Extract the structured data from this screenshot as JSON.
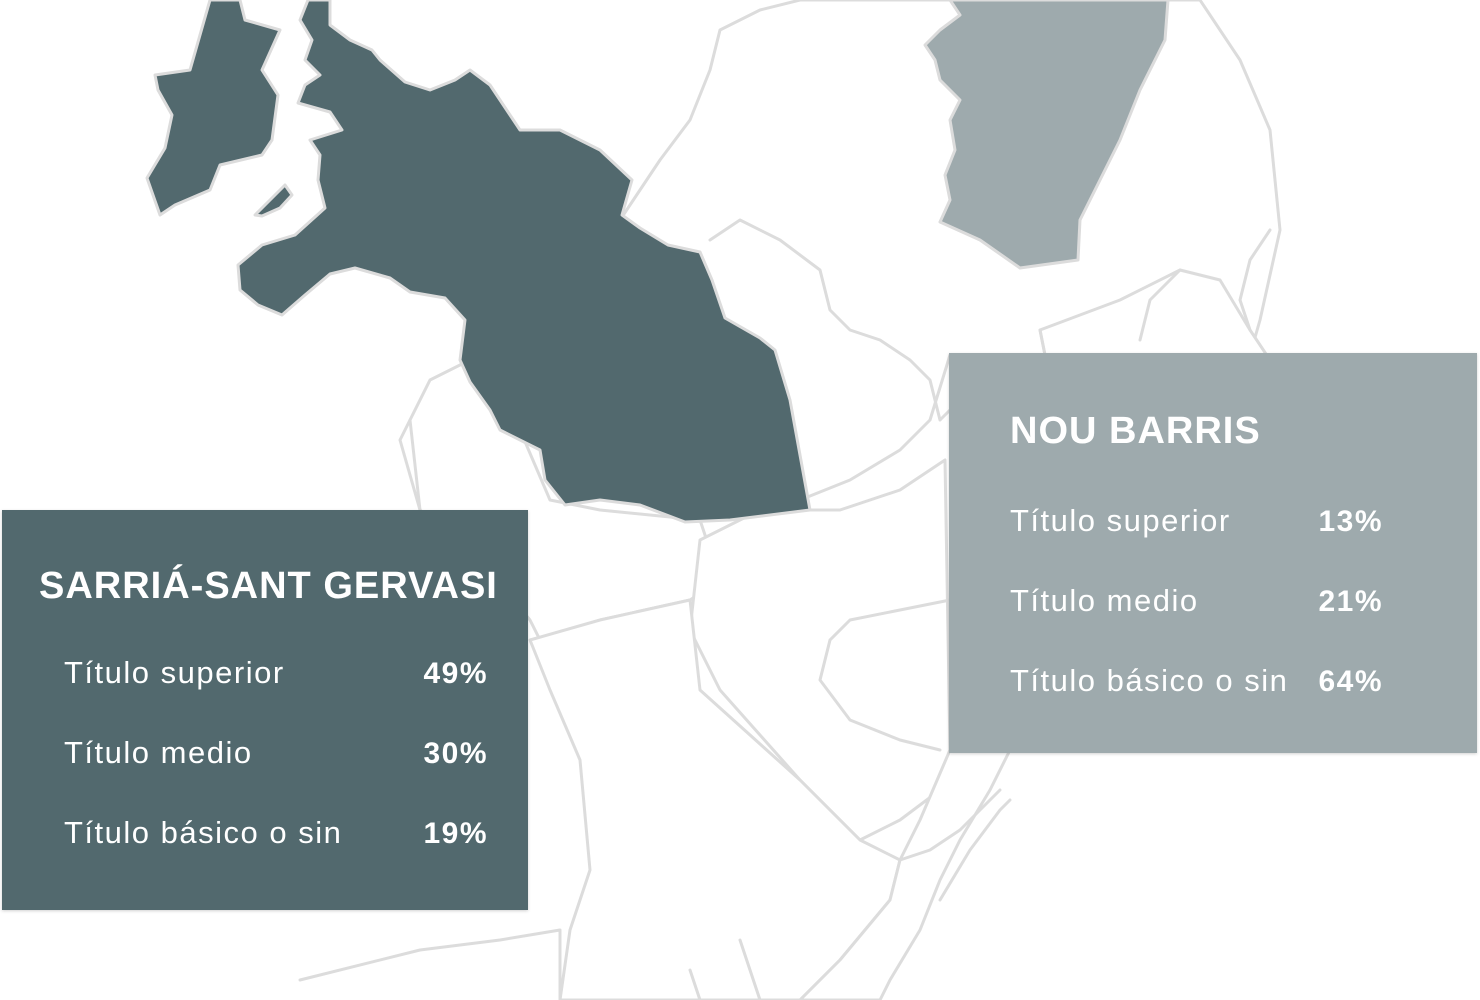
{
  "colors": {
    "background": "#ffffff",
    "border": "#dcdcdc",
    "sarria_fill": "#52696e",
    "nou_barris_fill": "#9eaaad",
    "text": "#ffffff"
  },
  "map": {
    "highlighted_districts": [
      {
        "name": "SARRIÁ-SANT GERVASI",
        "color": "#52696e"
      },
      {
        "name": "NOU BARRIS",
        "color": "#9eaaad"
      }
    ]
  },
  "cards": {
    "sarria": {
      "title": "SARRIÁ-SANT GERVASI",
      "color": "#52696e",
      "rows": [
        {
          "label": "Título superior",
          "value": "49%"
        },
        {
          "label": "Título medio",
          "value": "30%"
        },
        {
          "label": "Título básico o sin",
          "value": "19%"
        }
      ]
    },
    "nou_barris": {
      "title": "NOU BARRIS",
      "color": "#9eaaad",
      "rows": [
        {
          "label": "Título superior",
          "value": "13%"
        },
        {
          "label": "Título medio",
          "value": "21%"
        },
        {
          "label": "Título básico o sin",
          "value": "64%"
        }
      ]
    }
  }
}
